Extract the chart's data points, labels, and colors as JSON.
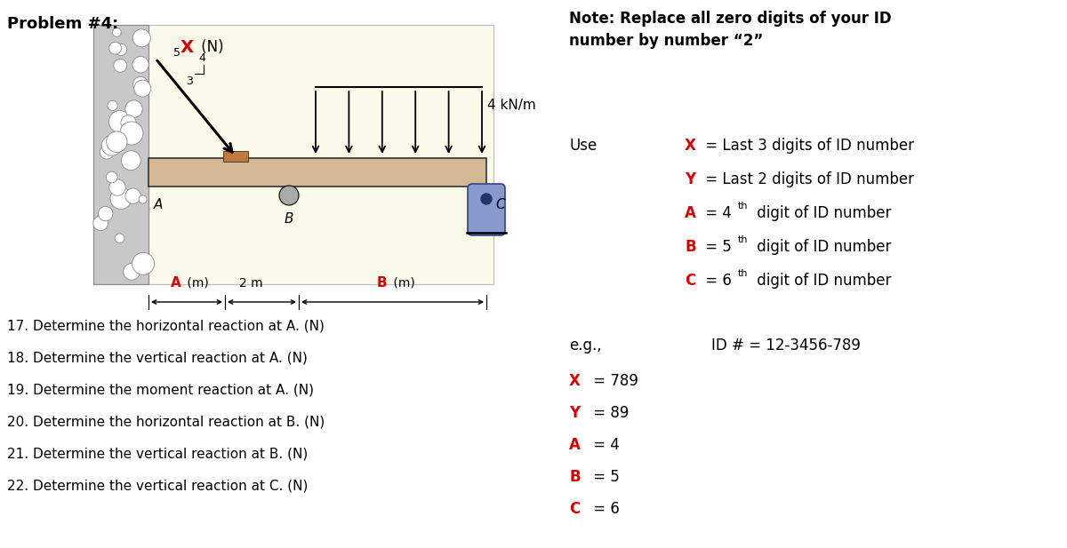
{
  "title_left": "Problem #4:",
  "diagram_bg": "#fafaeb",
  "wall_color": "#c8c8c8",
  "beam_color": "#d4b896",
  "questions": [
    "17. Determine the horizontal reaction at A. (N)",
    "18. Determine the vertical reaction at A. (N)",
    "19. Determine the moment reaction at A. (N)",
    "20. Determine the horizontal reaction at B. (N)",
    "21. Determine the vertical reaction at B. (N)",
    "22. Determine the vertical reaction at C. (N)"
  ],
  "note_title": "Note: Replace all zero digits of your ID\nnumber by number “2”",
  "use_label": "Use",
  "var_lines": [
    {
      "letter": "X",
      "color": "#dd0000",
      "main": " = Last 3 digits of ID number",
      "sup": null
    },
    {
      "letter": "Y",
      "color": "#dd0000",
      "main": " = Last 2 digits of ID number",
      "sup": null
    },
    {
      "letter": "A",
      "color": "#dd0000",
      "main": " = 4",
      "sup": "th",
      "tail": " digit of ID number"
    },
    {
      "letter": "B",
      "color": "#dd0000",
      "main": " = 5",
      "sup": "th",
      "tail": " digit of ID number"
    },
    {
      "letter": "C",
      "color": "#dd0000",
      "main": " = 6",
      "sup": "th",
      "tail": " digit of ID number"
    }
  ],
  "eg_label": "e.g.,",
  "eg_id": "ID # = 12-3456-789",
  "ex_vals": [
    {
      "letter": "X",
      "color": "#dd0000",
      "value": " = 789"
    },
    {
      "letter": "Y",
      "color": "#dd0000",
      "value": " = 89"
    },
    {
      "letter": "A",
      "color": "#dd0000",
      "value": " = 4"
    },
    {
      "letter": "B",
      "color": "#dd0000",
      "value": " = 5"
    },
    {
      "letter": "C",
      "color": "#dd0000",
      "value": " = 6"
    }
  ]
}
